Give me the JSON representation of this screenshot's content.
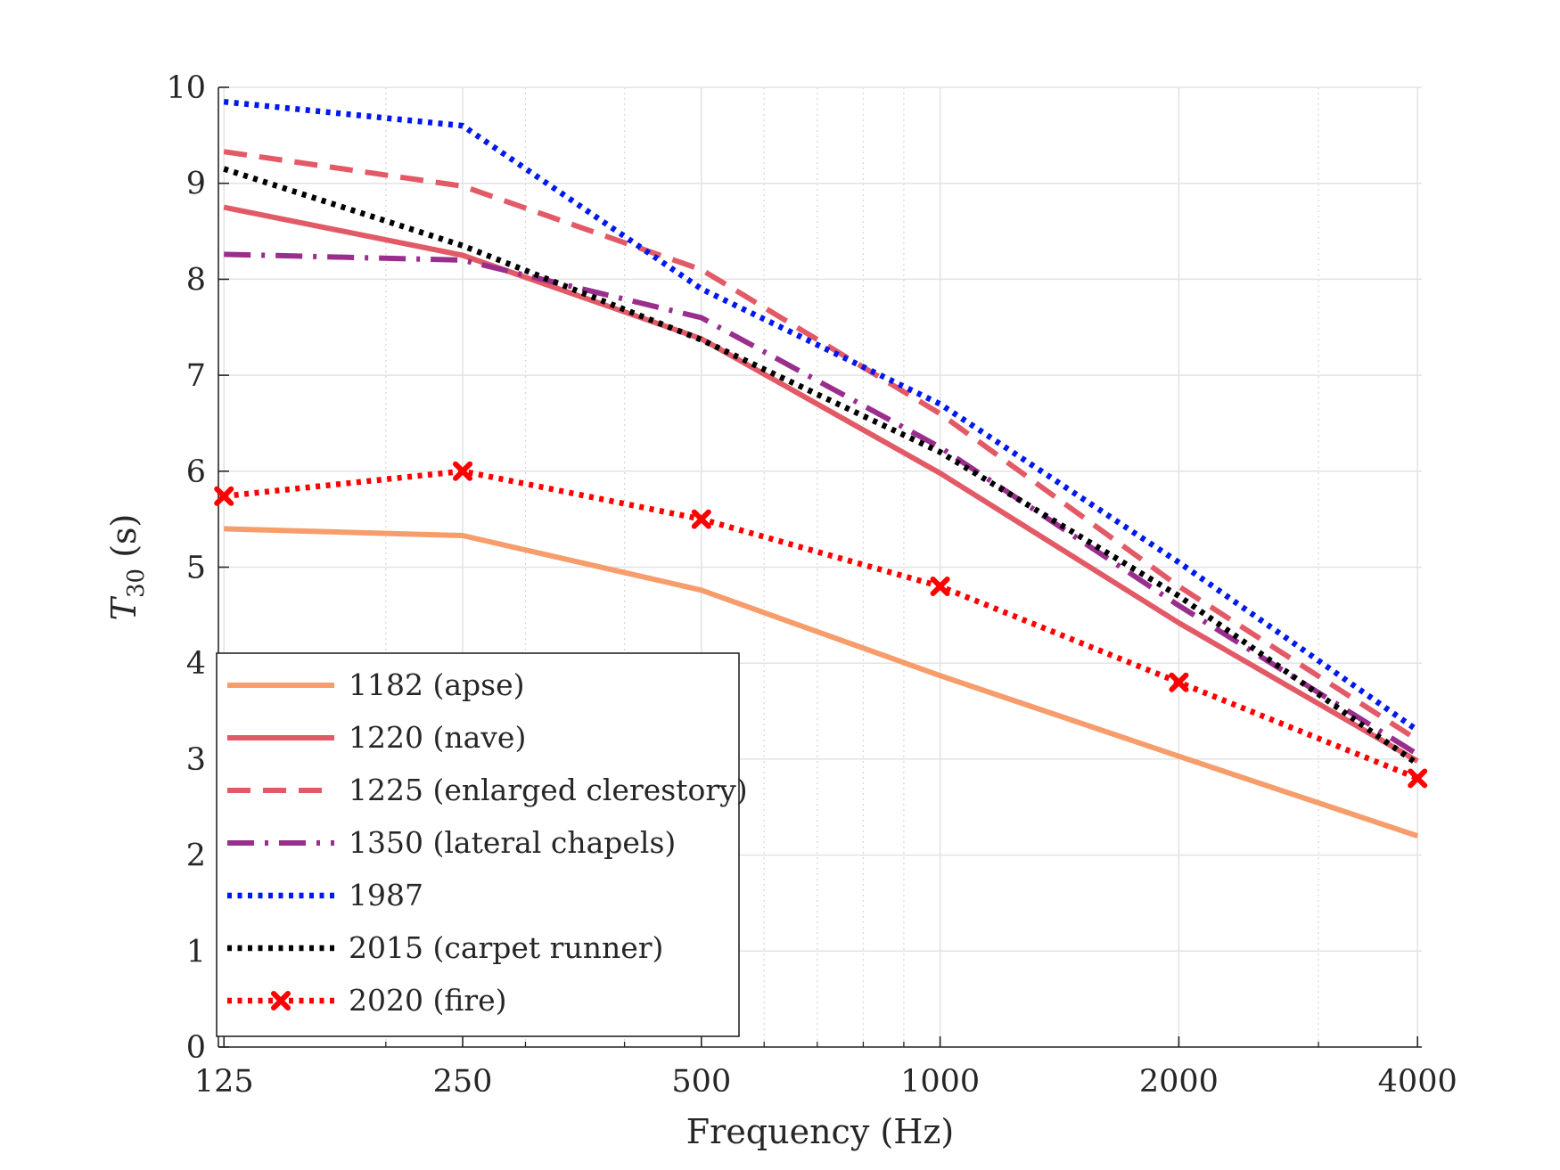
{
  "chart_data": {
    "type": "line",
    "x_scale": "log",
    "x": [
      125,
      250,
      500,
      1000,
      2000,
      4000
    ],
    "x_tick_labels": [
      "125",
      "250",
      "500",
      "1000",
      "2000",
      "4000"
    ],
    "y_tick_labels": [
      "0",
      "1",
      "2",
      "3",
      "4",
      "5",
      "6",
      "7",
      "8",
      "9",
      "10"
    ],
    "xlim": [
      123,
      4050
    ],
    "ylim": [
      0,
      10
    ],
    "xlabel": "Frequency (Hz)",
    "ylabel_main": "T",
    "ylabel_sub": "30",
    "ylabel_unit": " (s)",
    "grid": true,
    "legend_position": "bottom-left",
    "series": [
      {
        "name": "1182 (apse)",
        "color": "#f79c6b",
        "style": "solid",
        "marker": "none",
        "values": [
          5.4,
          5.33,
          4.76,
          3.87,
          3.03,
          2.2
        ]
      },
      {
        "name": "1220 (nave)",
        "color": "#e25a66",
        "style": "solid",
        "marker": "none",
        "values": [
          8.75,
          8.25,
          7.38,
          5.98,
          4.42,
          2.98
        ]
      },
      {
        "name": "1225 (enlarged clerestory)",
        "color": "#e25a66",
        "style": "dashed",
        "marker": "none",
        "values": [
          9.33,
          8.97,
          8.1,
          6.6,
          4.8,
          3.2
        ]
      },
      {
        "name": "1350 (lateral chapels)",
        "color": "#9a2e8c",
        "style": "dashdot",
        "marker": "none",
        "values": [
          8.26,
          8.2,
          7.6,
          6.25,
          4.6,
          3.05
        ]
      },
      {
        "name": "1987",
        "color": "#0018f0",
        "style": "dotted",
        "marker": "none",
        "values": [
          9.85,
          9.6,
          7.9,
          6.7,
          5.05,
          3.3
        ]
      },
      {
        "name": "2015 (carpet runner)",
        "color": "#000000",
        "style": "dotted",
        "marker": "none",
        "values": [
          9.15,
          8.35,
          7.37,
          6.2,
          4.7,
          2.95
        ]
      },
      {
        "name": "2020 (fire)",
        "color": "#ff0000",
        "style": "dotted",
        "marker": "x",
        "values": [
          5.74,
          6.0,
          5.5,
          4.8,
          3.8,
          2.8
        ]
      }
    ]
  }
}
